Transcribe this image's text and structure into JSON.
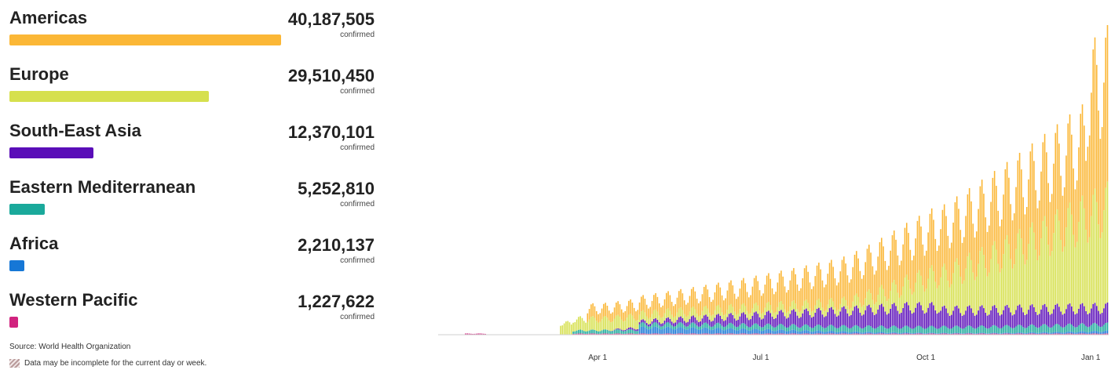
{
  "regions": [
    {
      "name": "Americas",
      "count": "40,187,505",
      "unit": "confirmed",
      "color": "#fbb736",
      "value": 40187505
    },
    {
      "name": "Europe",
      "count": "29,510,450",
      "unit": "confirmed",
      "color": "#d6e04e",
      "value": 29510450
    },
    {
      "name": "South-East Asia",
      "count": "12,370,101",
      "unit": "confirmed",
      "color": "#5a0db8",
      "value": 12370101
    },
    {
      "name": "Eastern Mediterranean",
      "count": "5,252,810",
      "unit": "confirmed",
      "color": "#1aa99b",
      "value": 5252810
    },
    {
      "name": "Africa",
      "count": "2,210,137",
      "unit": "confirmed",
      "color": "#1677d6",
      "value": 2210137
    },
    {
      "name": "Western Pacific",
      "count": "1,227,622",
      "unit": "confirmed",
      "color": "#d1237f",
      "value": 1227622
    }
  ],
  "source": "Source: World Health Organization",
  "note": "Data may be incomplete for the current day or week.",
  "chart_data": {
    "type": "bar",
    "stacked": true,
    "x_tick_labels": [
      "Apr 1",
      "Jul 1",
      "Oct 1",
      "Jan 1"
    ],
    "series_order": [
      "Western Pacific",
      "Africa",
      "Eastern Mediterranean",
      "South-East Asia",
      "Europe",
      "Americas"
    ],
    "x_range": [
      "2020-01-03",
      "2021-01-10"
    ],
    "grid": false,
    "legend": "none"
  }
}
